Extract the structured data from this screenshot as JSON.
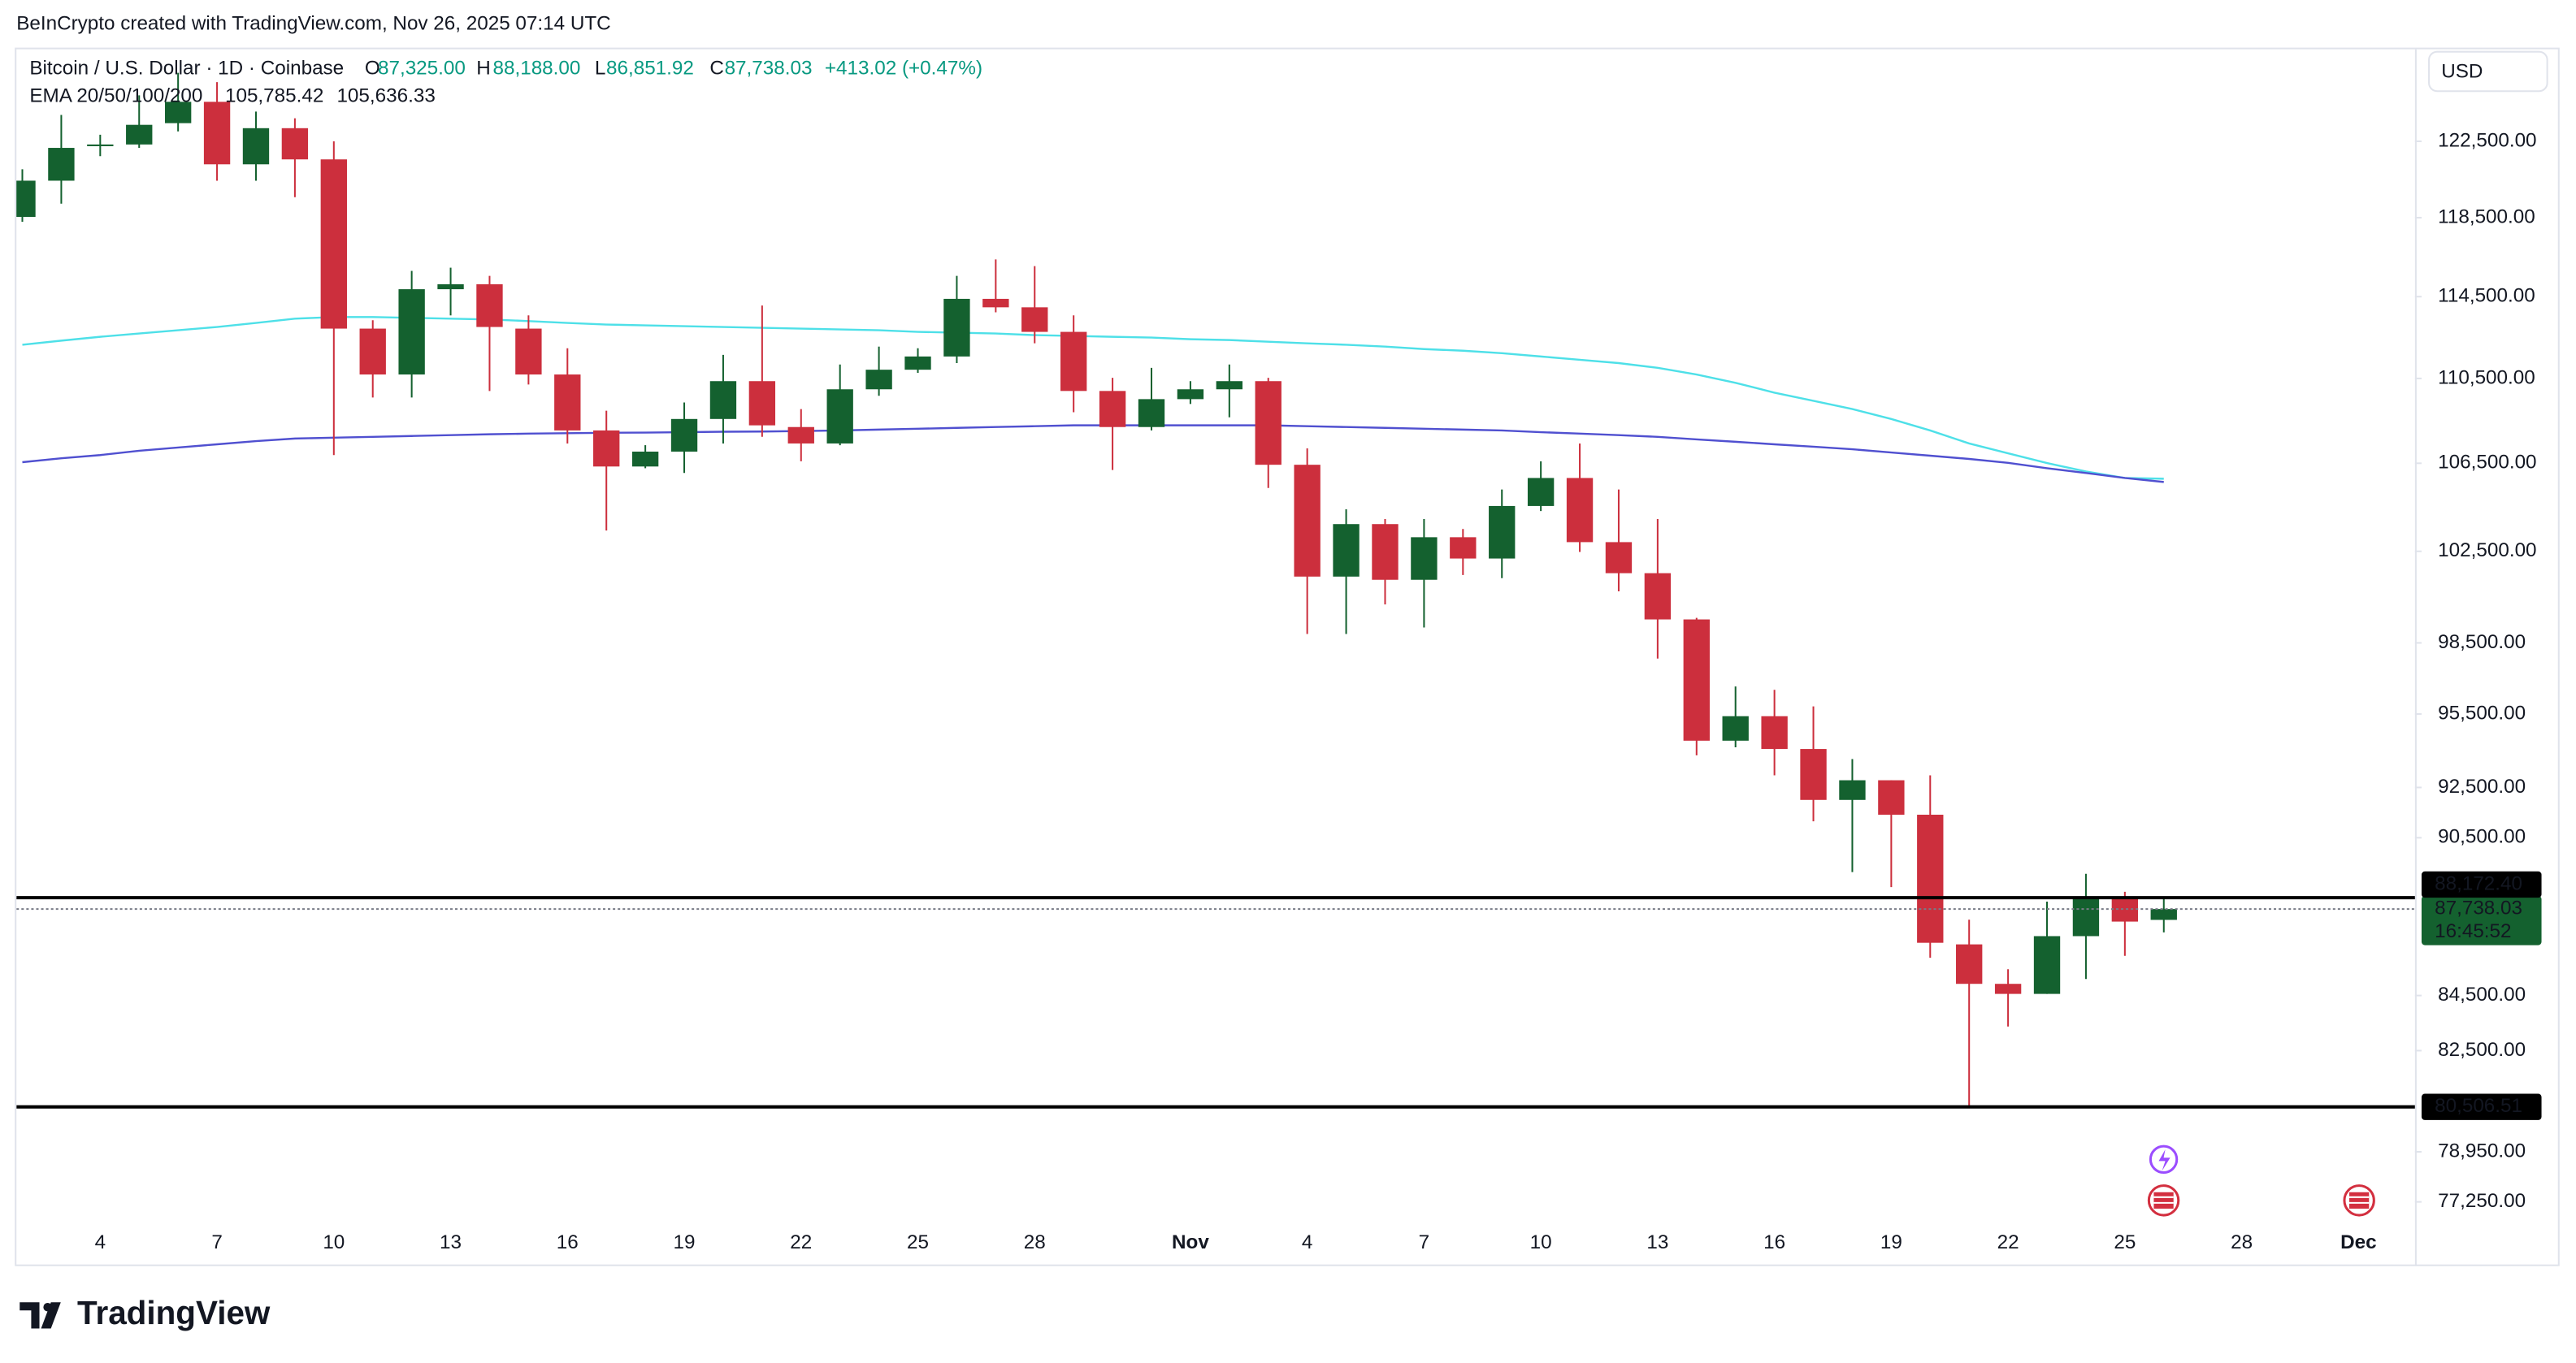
{
  "header": {
    "attribution": "BeInCrypto created with TradingView.com, Nov 26, 2025 07:14 UTC"
  },
  "chart_data": {
    "type": "candlestick",
    "title": "Bitcoin / U.S. Dollar · 1D · Coinbase",
    "ohlc_legend": {
      "open_label": "O",
      "open": "87,325.00",
      "high_label": "H",
      "high": "88,188.00",
      "low_label": "L",
      "low": "86,851.92",
      "close_label": "C",
      "close": "87,738.03",
      "change": "+413.02 (+0.47%)"
    },
    "currency": "USD",
    "log_scale": true,
    "grid": false,
    "up_color": "#14612f",
    "down_color": "#cc2f3d",
    "ylim": [
      76530,
      127500
    ],
    "yticks": [
      {
        "value": 122500,
        "label": "122,500.00"
      },
      {
        "value": 118500,
        "label": "118,500.00"
      },
      {
        "value": 114500,
        "label": "114,500.00"
      },
      {
        "value": 110500,
        "label": "110,500.00"
      },
      {
        "value": 106500,
        "label": "106,500.00"
      },
      {
        "value": 102500,
        "label": "102,500.00"
      },
      {
        "value": 98500,
        "label": "98,500.00"
      },
      {
        "value": 95500,
        "label": "95,500.00"
      },
      {
        "value": 92500,
        "label": "92,500.00"
      },
      {
        "value": 90500,
        "label": "90,500.00"
      },
      {
        "value": 84500,
        "label": "84,500.00"
      },
      {
        "value": 82500,
        "label": "82,500.00"
      },
      {
        "value": 78950,
        "label": "78,950.00"
      },
      {
        "value": 77250,
        "label": "77,250.00"
      }
    ],
    "categories": [
      null,
      null,
      "4",
      null,
      null,
      "7",
      null,
      null,
      "10",
      null,
      null,
      "13",
      null,
      null,
      "16",
      null,
      null,
      "19",
      null,
      null,
      "22",
      null,
      null,
      "25",
      null,
      null,
      "28",
      null,
      null,
      null,
      "Nov",
      null,
      null,
      "4",
      null,
      null,
      "7",
      null,
      null,
      "10",
      null,
      null,
      "13",
      null,
      null,
      "16",
      null,
      null,
      "19",
      null,
      null,
      "22",
      null,
      null,
      "25",
      null,
      null,
      "28",
      null,
      null,
      "Dec",
      null
    ],
    "open": [
      118540,
      120420,
      122240,
      122330,
      123470,
      124620,
      121280,
      123200,
      121540,
      112920,
      110690,
      114870,
      115120,
      112920,
      110690,
      108030,
      106350,
      107040,
      108570,
      110370,
      108190,
      107420,
      109980,
      110920,
      111560,
      114390,
      113970,
      112760,
      109900,
      108190,
      109510,
      109980,
      110370,
      106430,
      101380,
      103720,
      101240,
      103130,
      102180,
      104540,
      105820,
      102910,
      101530,
      99510,
      94400,
      95410,
      94060,
      92000,
      92790,
      91410,
      86400,
      84930,
      84560,
      86710,
      88140,
      87325,
      null,
      null,
      null,
      null,
      null,
      null
    ],
    "high": [
      121020,
      123910,
      122850,
      124970,
      126200,
      125690,
      124090,
      123730,
      122500,
      113330,
      115790,
      115950,
      115540,
      113570,
      111960,
      108960,
      107340,
      109350,
      111640,
      114060,
      109040,
      111170,
      112040,
      111960,
      115540,
      116370,
      116030,
      113570,
      110530,
      111010,
      110370,
      111170,
      110530,
      107190,
      104390,
      103950,
      103950,
      103500,
      105290,
      106590,
      107420,
      105290,
      103950,
      99580,
      96650,
      96510,
      95820,
      93650,
      92790,
      92990,
      87330,
      85470,
      88020,
      89090,
      88400,
      88188,
      null,
      null,
      null,
      null,
      null,
      null
    ],
    "low": [
      118290,
      119220,
      121710,
      122150,
      123030,
      120420,
      120420,
      119560,
      106880,
      109590,
      109590,
      113570,
      109900,
      110210,
      107420,
      103430,
      106270,
      106050,
      107420,
      107730,
      106590,
      107340,
      109670,
      110770,
      111240,
      113720,
      112200,
      108890,
      106190,
      108030,
      109280,
      108650,
      105360,
      98880,
      98880,
      100160,
      99160,
      101450,
      101310,
      104310,
      102470,
      100730,
      97830,
      93800,
      94130,
      92990,
      91150,
      89160,
      88580,
      85900,
      80530,
      83370,
      84560,
      85110,
      85970,
      86851.92,
      null,
      null,
      null,
      null,
      null,
      null
    ],
    "close": [
      120420,
      122150,
      122330,
      123380,
      124620,
      121280,
      123200,
      121540,
      112920,
      110690,
      114870,
      115120,
      113000,
      110690,
      108030,
      106350,
      107040,
      108570,
      110370,
      108270,
      107420,
      109980,
      110920,
      111560,
      114390,
      113970,
      112760,
      109900,
      108190,
      109510,
      109980,
      110370,
      106430,
      101380,
      103720,
      101240,
      103130,
      102180,
      104540,
      105820,
      102910,
      101530,
      99510,
      94400,
      95410,
      94060,
      92000,
      92790,
      91410,
      86460,
      84930,
      84560,
      86710,
      88140,
      87260,
      87738.03,
      null,
      null,
      null,
      null,
      null,
      null
    ],
    "current_price": {
      "label": "87,738.03",
      "countdown": "16:45:52",
      "color": "#14612f"
    },
    "indicator": {
      "name": "EMA 20/50/100/200"
    },
    "series": [
      {
        "color": "#4ee0e8",
        "values": [
          112130,
          112330,
          112520,
          112680,
          112840,
          113000,
          113200,
          113410,
          113490,
          113490,
          113450,
          113410,
          113370,
          113290,
          113200,
          113120,
          113080,
          113040,
          113000,
          112960,
          112920,
          112880,
          112840,
          112760,
          112720,
          112680,
          112600,
          112560,
          112520,
          112480,
          112400,
          112360,
          112280,
          112200,
          112130,
          112040,
          111920,
          111840,
          111720,
          111560,
          111400,
          111240,
          111010,
          110690,
          110290,
          109820,
          109430,
          109040,
          108570,
          108030,
          107420,
          106960,
          106510,
          106120,
          105820,
          105785.42,
          null,
          null,
          null,
          null,
          null,
          null
        ],
        "value_labels": [
          null,
          null,
          null,
          null,
          null,
          null,
          null,
          null,
          null,
          null,
          null,
          null,
          null,
          null,
          null,
          null,
          null,
          null,
          null,
          null,
          null,
          null,
          null,
          null,
          null,
          null,
          null,
          null,
          null,
          null,
          null,
          null,
          null,
          null,
          null,
          null,
          null,
          null,
          null,
          null,
          null,
          null,
          null,
          null,
          null,
          null,
          null,
          null,
          null,
          null,
          null,
          null,
          null,
          null,
          null,
          "105,785.42",
          null,
          null,
          null,
          null,
          null,
          null
        ]
      },
      {
        "color": "#5050d0",
        "values": [
          106550,
          106730,
          106880,
          107080,
          107230,
          107380,
          107530,
          107650,
          107690,
          107730,
          107770,
          107810,
          107850,
          107880,
          107900,
          107920,
          107930,
          107950,
          107970,
          107980,
          108000,
          108030,
          108070,
          108110,
          108150,
          108190,
          108230,
          108270,
          108270,
          108270,
          108270,
          108270,
          108270,
          108230,
          108190,
          108150,
          108110,
          108070,
          108030,
          107950,
          107880,
          107810,
          107730,
          107610,
          107500,
          107380,
          107270,
          107150,
          107000,
          106850,
          106700,
          106520,
          106270,
          106050,
          105820,
          105636.33,
          null,
          null,
          null,
          null,
          null,
          null
        ],
        "value_labels": [
          null,
          null,
          null,
          null,
          null,
          null,
          null,
          null,
          null,
          null,
          null,
          null,
          null,
          null,
          null,
          null,
          null,
          null,
          null,
          null,
          null,
          null,
          null,
          null,
          null,
          null,
          null,
          null,
          null,
          null,
          null,
          null,
          null,
          null,
          null,
          null,
          null,
          null,
          null,
          null,
          null,
          null,
          null,
          null,
          null,
          null,
          null,
          null,
          null,
          null,
          null,
          null,
          null,
          null,
          null,
          "105,636.33",
          null,
          null,
          null,
          null,
          null,
          null
        ]
      }
    ],
    "levels": [
      {
        "value": 88172.4,
        "label": "88,172.40",
        "color": "#000000"
      },
      {
        "value": 80506.51,
        "label": "80,506.51",
        "color": "#000000"
      }
    ]
  },
  "footer": {
    "brand": "TradingView"
  }
}
